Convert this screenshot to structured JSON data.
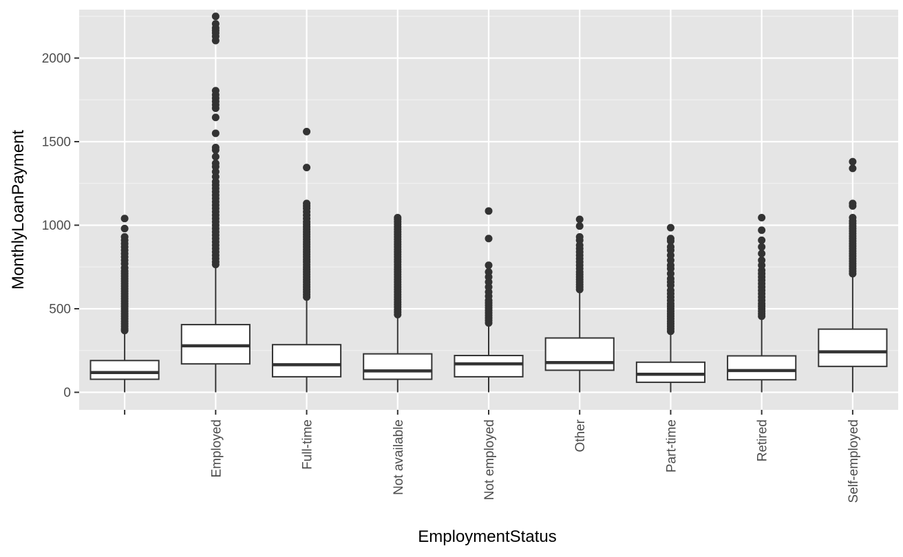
{
  "chart_data": {
    "type": "boxplot",
    "xlabel": "EmploymentStatus",
    "ylabel": "MonthlyLoanPayment",
    "ylim": [
      -105,
      2290
    ],
    "yticks": [
      0,
      500,
      1000,
      1500,
      2000
    ],
    "ytick_labels": [
      "0",
      "500",
      "1000",
      "1500",
      "2000"
    ],
    "grid": true,
    "legend": "none",
    "categories": [
      "",
      "Employed",
      "Full-time",
      "Not available",
      "Not employed",
      "Other",
      "Part-time",
      "Retired",
      "Self-employed"
    ],
    "boxes": [
      {
        "category": "",
        "whisker_low": 0,
        "q1": 78,
        "median": 118,
        "q3": 190,
        "whisker_high": 360,
        "outliers": [
          370,
          380,
          395,
          410,
          425,
          440,
          455,
          470,
          485,
          500,
          515,
          530,
          545,
          560,
          575,
          590,
          605,
          620,
          635,
          650,
          665,
          680,
          695,
          710,
          725,
          745,
          770,
          790,
          810,
          830,
          850,
          870,
          890,
          910,
          930,
          980,
          1040
        ]
      },
      {
        "category": "Employed",
        "whisker_low": 0,
        "q1": 170,
        "median": 278,
        "q3": 405,
        "whisker_high": 755,
        "outliers": [
          765,
          780,
          800,
          820,
          840,
          860,
          880,
          900,
          920,
          940,
          960,
          980,
          1000,
          1020,
          1040,
          1060,
          1080,
          1100,
          1120,
          1140,
          1160,
          1180,
          1200,
          1220,
          1240,
          1260,
          1290,
          1320,
          1350,
          1370,
          1410,
          1450,
          1465,
          1550,
          1645,
          1700,
          1720,
          1740,
          1760,
          1780,
          1805,
          2105,
          2130,
          2150,
          2165,
          2180,
          2205,
          2250
        ]
      },
      {
        "category": "Full-time",
        "whisker_low": 0,
        "q1": 93,
        "median": 165,
        "q3": 285,
        "whisker_high": 555,
        "outliers": [
          570,
          585,
          600,
          615,
          630,
          645,
          660,
          675,
          690,
          705,
          720,
          735,
          750,
          765,
          780,
          795,
          810,
          825,
          840,
          855,
          870,
          885,
          900,
          915,
          930,
          945,
          960,
          975,
          990,
          1005,
          1020,
          1040,
          1060,
          1080,
          1100,
          1115,
          1130,
          1345,
          1560
        ]
      },
      {
        "category": "Not available",
        "whisker_low": 0,
        "q1": 78,
        "median": 128,
        "q3": 230,
        "whisker_high": 455,
        "outliers": [
          465,
          480,
          495,
          510,
          525,
          540,
          555,
          570,
          585,
          600,
          615,
          630,
          645,
          660,
          675,
          690,
          705,
          720,
          735,
          750,
          765,
          780,
          795,
          810,
          825,
          840,
          855,
          870,
          885,
          900,
          915,
          930,
          945,
          960,
          975,
          990,
          1005,
          1020,
          1035,
          1045
        ]
      },
      {
        "category": "Not employed",
        "whisker_low": 0,
        "q1": 93,
        "median": 170,
        "q3": 220,
        "whisker_high": 405,
        "outliers": [
          415,
          430,
          445,
          460,
          475,
          490,
          505,
          520,
          535,
          550,
          575,
          600,
          630,
          660,
          690,
          720,
          760,
          920,
          1085
        ]
      },
      {
        "category": "Other",
        "whisker_low": 0,
        "q1": 132,
        "median": 178,
        "q3": 325,
        "whisker_high": 605,
        "outliers": [
          615,
          630,
          645,
          660,
          675,
          690,
          705,
          720,
          740,
          760,
          780,
          800,
          820,
          840,
          860,
          880,
          910,
          930,
          995,
          1035
        ]
      },
      {
        "category": "Part-time",
        "whisker_low": 0,
        "q1": 60,
        "median": 108,
        "q3": 180,
        "whisker_high": 355,
        "outliers": [
          365,
          380,
          395,
          410,
          425,
          440,
          455,
          470,
          485,
          500,
          515,
          530,
          550,
          570,
          590,
          610,
          640,
          660,
          680,
          710,
          740,
          760,
          790,
          820,
          850,
          870,
          905,
          920,
          985
        ]
      },
      {
        "category": "Retired",
        "whisker_low": 0,
        "q1": 75,
        "median": 130,
        "q3": 218,
        "whisker_high": 445,
        "outliers": [
          455,
          470,
          485,
          500,
          515,
          530,
          550,
          570,
          590,
          610,
          630,
          650,
          670,
          690,
          710,
          730,
          760,
          790,
          830,
          870,
          910,
          970,
          1045
        ]
      },
      {
        "category": "Self-employed",
        "whisker_low": 0,
        "q1": 155,
        "median": 242,
        "q3": 378,
        "whisker_high": 700,
        "outliers": [
          710,
          725,
          740,
          755,
          770,
          785,
          800,
          815,
          830,
          845,
          860,
          875,
          890,
          905,
          920,
          935,
          950,
          965,
          980,
          995,
          1010,
          1025,
          1045,
          1115,
          1130,
          1340,
          1380
        ]
      }
    ]
  }
}
